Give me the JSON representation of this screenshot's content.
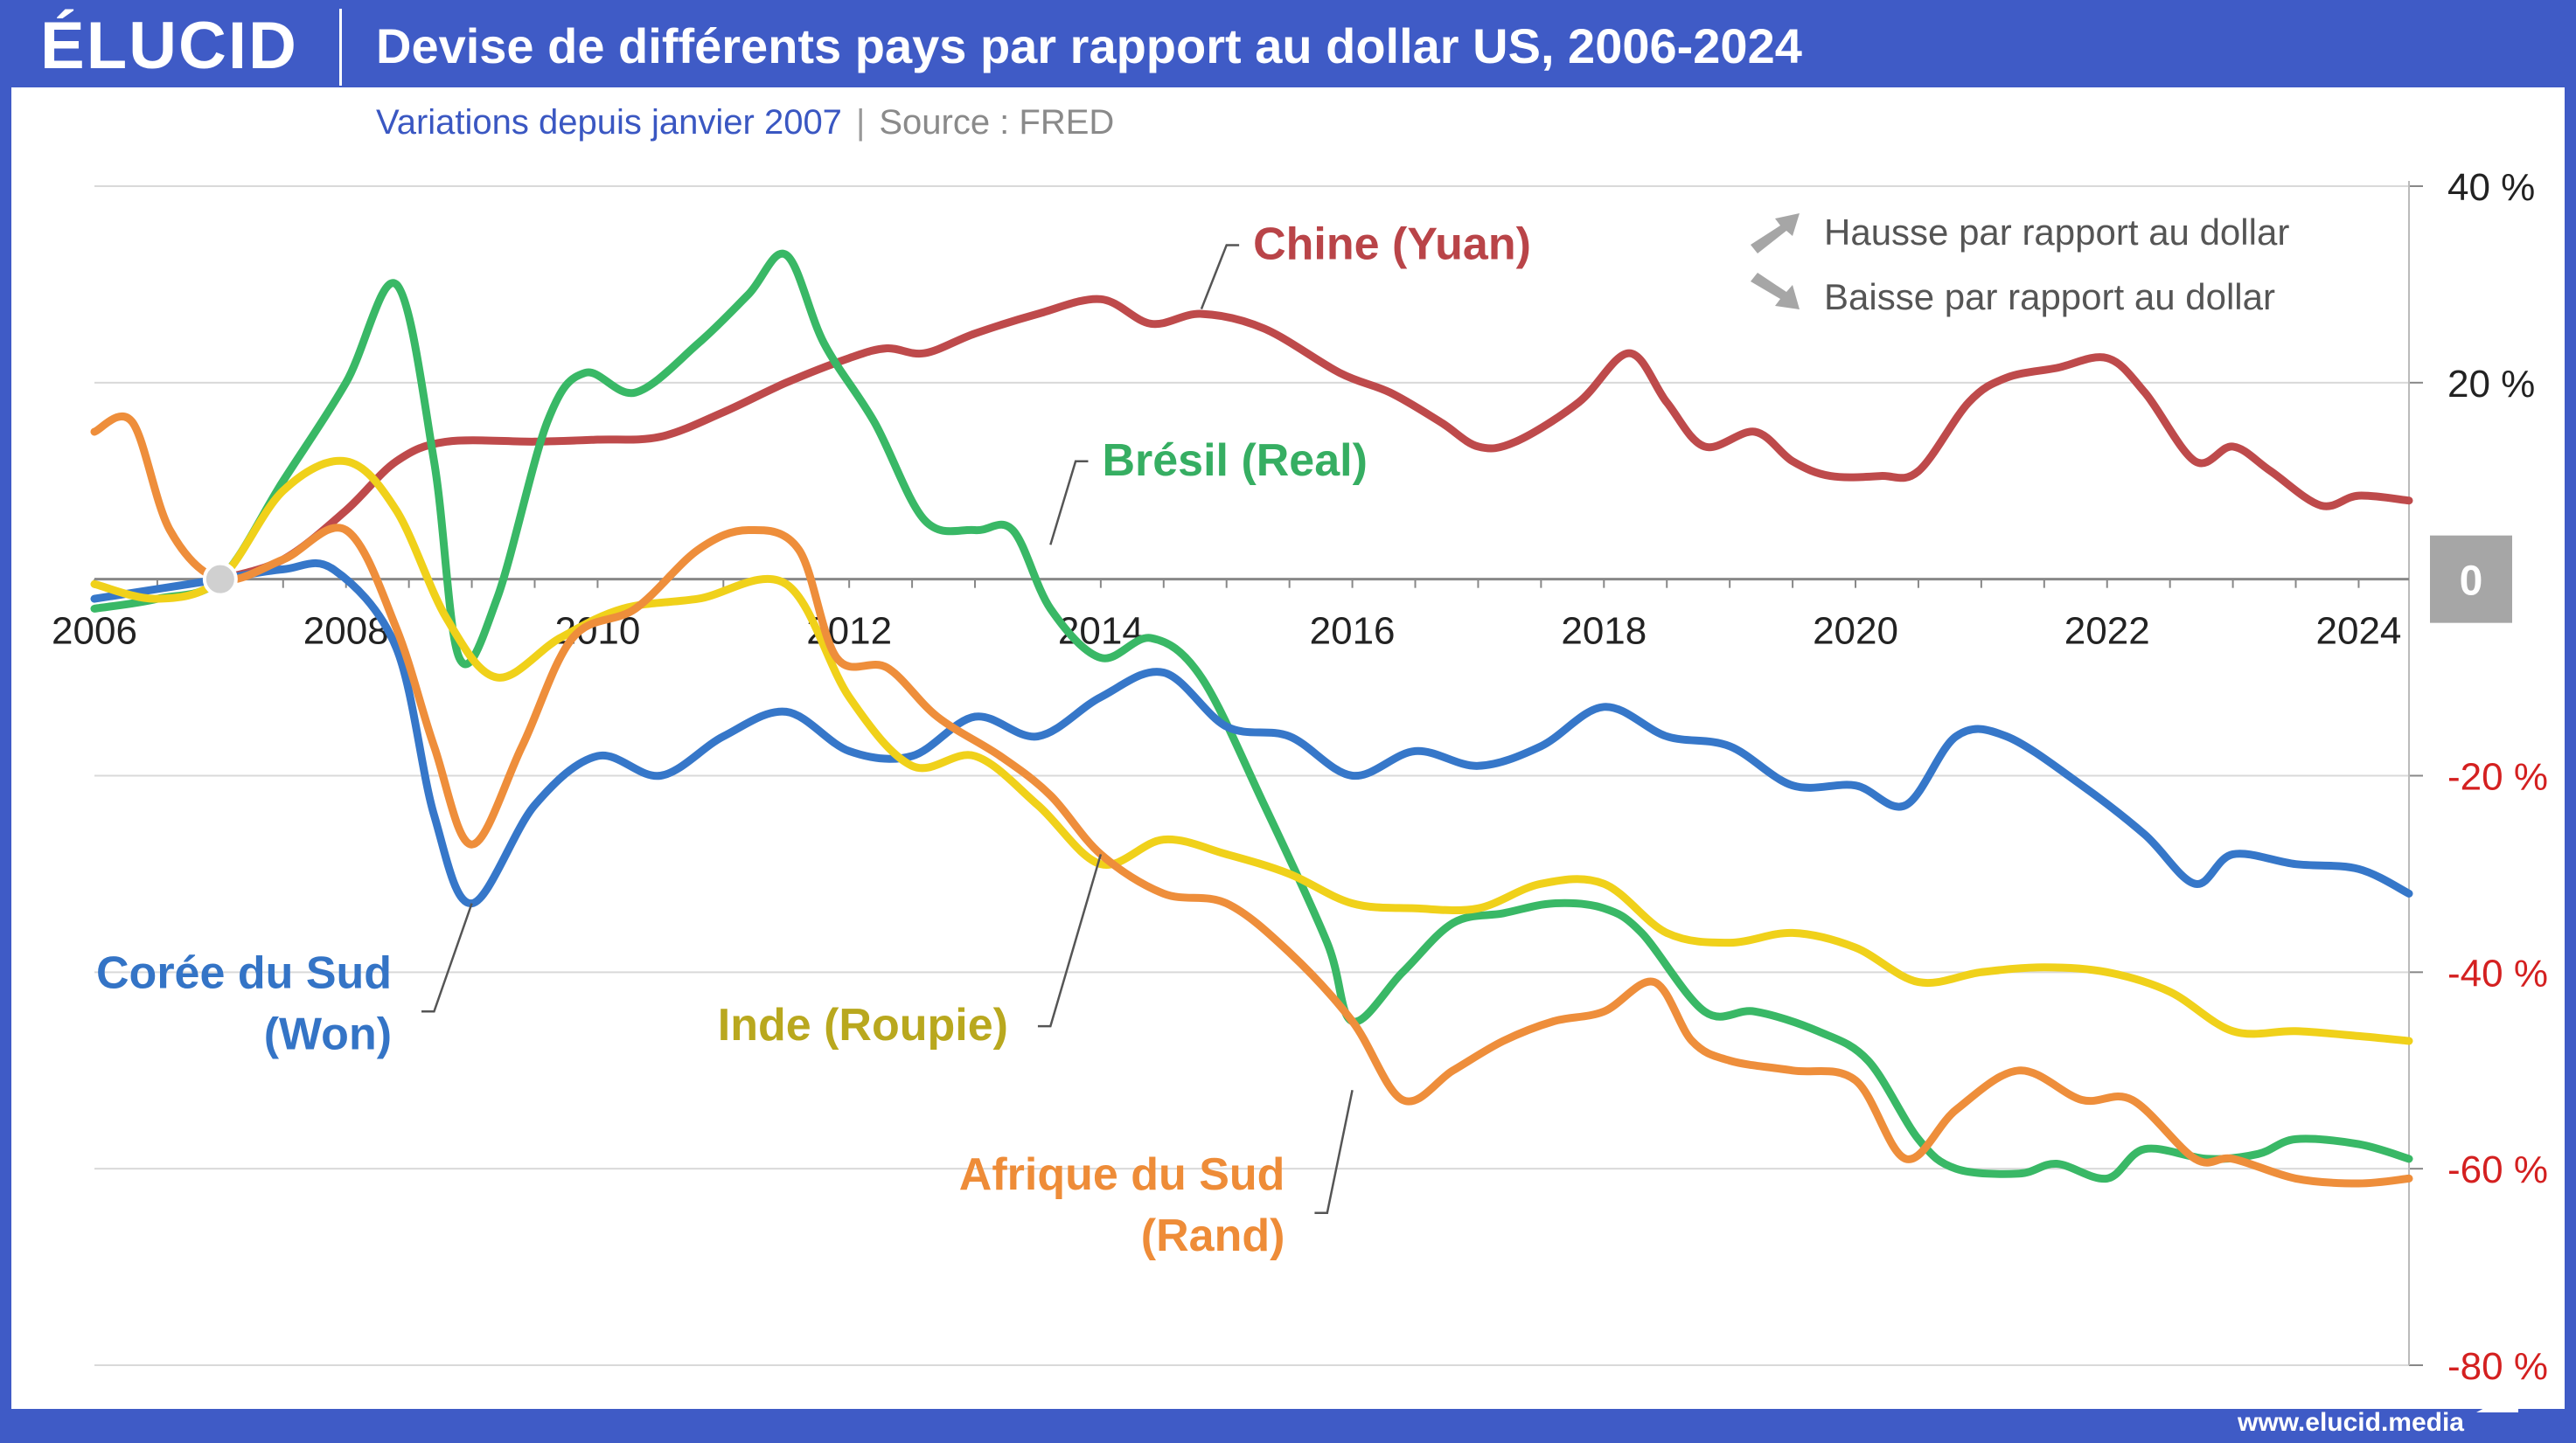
{
  "header": {
    "logo_text": "ÉLUCID",
    "title": "Devise de différents pays par rapport au dollar US, 2006-2024",
    "subtitle": "Variations depuis janvier 2007",
    "separator": "|",
    "source": "Source : FRED"
  },
  "footer": {
    "url": "www.elucid.media"
  },
  "legend": {
    "up": {
      "icon": "arrow-up-right-icon",
      "label": "Hausse par rapport au dollar"
    },
    "down": {
      "icon": "arrow-down-right-icon",
      "label": "Baisse par rapport au dollar"
    }
  },
  "colors": {
    "background": "#3f5bc6",
    "panel": "#ffffff",
    "grid": "#d9d9d9",
    "zero_box": "#a6a6a6",
    "negative_tick": "#d42020",
    "positive_tick": "#222222",
    "leader": "#555555",
    "legend_arrow": "#a6a6a6"
  },
  "chart_data": {
    "type": "line",
    "title": "Devise de différents pays par rapport au dollar US, 2006-2024",
    "subtitle": "Variations depuis janvier 2007",
    "xlabel": "",
    "ylabel": "",
    "xlim": [
      2006,
      2024.4
    ],
    "ylim": [
      -80,
      40
    ],
    "x_ticks": [
      2006,
      2008,
      2010,
      2012,
      2014,
      2016,
      2018,
      2020,
      2022,
      2024
    ],
    "y_ticks": [
      {
        "value": 40,
        "label": "40 %"
      },
      {
        "value": 20,
        "label": "20 %"
      },
      {
        "value": 0,
        "label": "0"
      },
      {
        "value": -20,
        "label": "-20 %"
      },
      {
        "value": -40,
        "label": "-40 %"
      },
      {
        "value": -60,
        "label": "-60 %"
      },
      {
        "value": -80,
        "label": "-80 %"
      }
    ],
    "grid": true,
    "base_point": {
      "x": 2007,
      "y": 0
    },
    "series": [
      {
        "name": "Chine (Yuan)",
        "label_lines": [
          "Chine (Yuan)"
        ],
        "color": "#be4a4b",
        "label_color": "#b94448",
        "points": [
          [
            2007.0,
            0
          ],
          [
            2007.5,
            2
          ],
          [
            2008.0,
            7
          ],
          [
            2008.4,
            12
          ],
          [
            2008.8,
            14
          ],
          [
            2009.5,
            14
          ],
          [
            2010.0,
            14.2
          ],
          [
            2010.5,
            14.5
          ],
          [
            2011.0,
            17
          ],
          [
            2011.5,
            20
          ],
          [
            2012.0,
            22.5
          ],
          [
            2012.3,
            23.5
          ],
          [
            2012.6,
            23
          ],
          [
            2013.0,
            25
          ],
          [
            2013.5,
            27
          ],
          [
            2014.0,
            28.5
          ],
          [
            2014.4,
            26
          ],
          [
            2014.8,
            27
          ],
          [
            2015.3,
            25.5
          ],
          [
            2015.9,
            21
          ],
          [
            2016.3,
            19
          ],
          [
            2016.7,
            16
          ],
          [
            2017.0,
            13.5
          ],
          [
            2017.3,
            14
          ],
          [
            2017.8,
            18
          ],
          [
            2018.2,
            23
          ],
          [
            2018.5,
            18
          ],
          [
            2018.8,
            13.5
          ],
          [
            2019.2,
            15
          ],
          [
            2019.5,
            12
          ],
          [
            2019.8,
            10.5
          ],
          [
            2020.2,
            10.5
          ],
          [
            2020.5,
            11
          ],
          [
            2020.9,
            18
          ],
          [
            2021.2,
            20.5
          ],
          [
            2021.6,
            21.5
          ],
          [
            2022.0,
            22.5
          ],
          [
            2022.3,
            19
          ],
          [
            2022.7,
            12
          ],
          [
            2023.0,
            13.5
          ],
          [
            2023.3,
            11
          ],
          [
            2023.7,
            7.5
          ],
          [
            2024.0,
            8.5
          ],
          [
            2024.4,
            8
          ]
        ],
        "label_leader": [
          [
            2014.8,
            27.5
          ],
          [
            2015.0,
            34
          ],
          [
            2015.1,
            34
          ]
        ]
      },
      {
        "name": "Brésil (Real)",
        "label_lines": [
          "Brésil (Real)"
        ],
        "color": "#39b866",
        "label_color": "#36ae62",
        "points": [
          [
            2006.0,
            -3
          ],
          [
            2006.5,
            -2
          ],
          [
            2007.0,
            0
          ],
          [
            2007.5,
            10
          ],
          [
            2008.0,
            20
          ],
          [
            2008.4,
            30
          ],
          [
            2008.7,
            12
          ],
          [
            2008.9,
            -8
          ],
          [
            2009.2,
            -2
          ],
          [
            2009.6,
            16
          ],
          [
            2009.9,
            21
          ],
          [
            2010.3,
            19
          ],
          [
            2010.8,
            24
          ],
          [
            2011.2,
            29
          ],
          [
            2011.5,
            33
          ],
          [
            2011.8,
            24
          ],
          [
            2012.2,
            16
          ],
          [
            2012.6,
            6
          ],
          [
            2013.0,
            5
          ],
          [
            2013.3,
            5
          ],
          [
            2013.6,
            -3
          ],
          [
            2014.0,
            -8
          ],
          [
            2014.4,
            -6
          ],
          [
            2014.8,
            -10
          ],
          [
            2015.3,
            -23
          ],
          [
            2015.8,
            -37
          ],
          [
            2016.0,
            -45
          ],
          [
            2016.4,
            -40
          ],
          [
            2016.8,
            -35
          ],
          [
            2017.2,
            -34
          ],
          [
            2017.6,
            -33
          ],
          [
            2018.0,
            -33.5
          ],
          [
            2018.3,
            -36
          ],
          [
            2018.8,
            -44
          ],
          [
            2019.2,
            -44
          ],
          [
            2019.7,
            -46
          ],
          [
            2020.1,
            -49
          ],
          [
            2020.5,
            -57
          ],
          [
            2020.8,
            -60
          ],
          [
            2021.3,
            -60.5
          ],
          [
            2021.6,
            -59.5
          ],
          [
            2022.0,
            -61
          ],
          [
            2022.3,
            -58
          ],
          [
            2022.8,
            -59
          ],
          [
            2023.2,
            -58.5
          ],
          [
            2023.5,
            -57
          ],
          [
            2024.0,
            -57.5
          ],
          [
            2024.4,
            -59
          ]
        ],
        "label_leader": [
          [
            2013.6,
            3.5
          ],
          [
            2013.8,
            12
          ],
          [
            2013.9,
            12
          ]
        ]
      },
      {
        "name": "Corée du Sud (Won)",
        "label_lines": [
          "Corée du Sud",
          "(Won)"
        ],
        "color": "#3677c9",
        "label_color": "#3474c6",
        "points": [
          [
            2006.0,
            -2
          ],
          [
            2006.5,
            -1
          ],
          [
            2007.0,
            0
          ],
          [
            2007.5,
            1
          ],
          [
            2007.9,
            1
          ],
          [
            2008.4,
            -7
          ],
          [
            2008.7,
            -24
          ],
          [
            2009.0,
            -33
          ],
          [
            2009.5,
            -23
          ],
          [
            2010.0,
            -18
          ],
          [
            2010.5,
            -20
          ],
          [
            2011.0,
            -16
          ],
          [
            2011.5,
            -13.5
          ],
          [
            2012.0,
            -17.5
          ],
          [
            2012.5,
            -18
          ],
          [
            2013.0,
            -14
          ],
          [
            2013.5,
            -16
          ],
          [
            2014.0,
            -12
          ],
          [
            2014.5,
            -9.5
          ],
          [
            2015.0,
            -15
          ],
          [
            2015.5,
            -16
          ],
          [
            2016.0,
            -20
          ],
          [
            2016.5,
            -17.5
          ],
          [
            2017.0,
            -19
          ],
          [
            2017.5,
            -17
          ],
          [
            2018.0,
            -13
          ],
          [
            2018.5,
            -16
          ],
          [
            2019.0,
            -17
          ],
          [
            2019.5,
            -21
          ],
          [
            2020.0,
            -21
          ],
          [
            2020.4,
            -23
          ],
          [
            2020.8,
            -16
          ],
          [
            2021.2,
            -16
          ],
          [
            2021.8,
            -21
          ],
          [
            2022.3,
            -26
          ],
          [
            2022.7,
            -31
          ],
          [
            2023.0,
            -28
          ],
          [
            2023.5,
            -29
          ],
          [
            2024.0,
            -29.5
          ],
          [
            2024.4,
            -32
          ]
        ],
        "label_leader": [
          [
            2009.0,
            -33
          ],
          [
            2008.7,
            -44
          ],
          [
            2008.6,
            -44
          ]
        ]
      },
      {
        "name": "Inde (Roupie)",
        "label_lines": [
          "Inde (Roupie)"
        ],
        "color": "#f0d11a",
        "label_color": "#b9a81e",
        "points": [
          [
            2006.0,
            -0.5
          ],
          [
            2006.5,
            -2
          ],
          [
            2007.0,
            0
          ],
          [
            2007.5,
            9
          ],
          [
            2008.0,
            12
          ],
          [
            2008.4,
            7
          ],
          [
            2008.8,
            -4
          ],
          [
            2009.2,
            -10
          ],
          [
            2009.7,
            -6
          ],
          [
            2010.2,
            -3
          ],
          [
            2010.8,
            -2
          ],
          [
            2011.5,
            -0.5
          ],
          [
            2012.0,
            -12
          ],
          [
            2012.5,
            -19
          ],
          [
            2013.0,
            -18
          ],
          [
            2013.5,
            -23
          ],
          [
            2014.0,
            -29
          ],
          [
            2014.5,
            -26.5
          ],
          [
            2015.0,
            -28
          ],
          [
            2015.5,
            -30
          ],
          [
            2016.0,
            -33
          ],
          [
            2016.5,
            -33.5
          ],
          [
            2017.0,
            -33.5
          ],
          [
            2017.5,
            -31
          ],
          [
            2018.0,
            -31
          ],
          [
            2018.5,
            -36
          ],
          [
            2019.0,
            -37
          ],
          [
            2019.5,
            -36
          ],
          [
            2020.0,
            -37.5
          ],
          [
            2020.5,
            -41
          ],
          [
            2021.0,
            -40
          ],
          [
            2021.5,
            -39.5
          ],
          [
            2022.0,
            -40
          ],
          [
            2022.5,
            -42
          ],
          [
            2023.0,
            -46
          ],
          [
            2023.5,
            -46
          ],
          [
            2024.0,
            -46.5
          ],
          [
            2024.4,
            -47
          ]
        ],
        "label_leader": [
          [
            2014.0,
            -28
          ],
          [
            2013.6,
            -45.5
          ],
          [
            2013.5,
            -45.5
          ]
        ]
      },
      {
        "name": "Afrique du Sud (Rand)",
        "label_lines": [
          "Afrique du Sud",
          "(Rand)"
        ],
        "color": "#ee8e3b",
        "label_color": "#ee8c38",
        "points": [
          [
            2006.0,
            15
          ],
          [
            2006.3,
            16
          ],
          [
            2006.6,
            5
          ],
          [
            2007.0,
            0
          ],
          [
            2007.5,
            2
          ],
          [
            2008.0,
            5
          ],
          [
            2008.4,
            -5
          ],
          [
            2008.7,
            -17
          ],
          [
            2009.0,
            -27
          ],
          [
            2009.4,
            -17
          ],
          [
            2009.8,
            -6
          ],
          [
            2010.3,
            -3
          ],
          [
            2010.8,
            3
          ],
          [
            2011.2,
            5
          ],
          [
            2011.6,
            3
          ],
          [
            2011.9,
            -8
          ],
          [
            2012.3,
            -9
          ],
          [
            2012.7,
            -14
          ],
          [
            2013.2,
            -18
          ],
          [
            2013.6,
            -22
          ],
          [
            2014.0,
            -28
          ],
          [
            2014.5,
            -32
          ],
          [
            2015.0,
            -33
          ],
          [
            2015.5,
            -38
          ],
          [
            2016.0,
            -45
          ],
          [
            2016.4,
            -53
          ],
          [
            2016.8,
            -50
          ],
          [
            2017.2,
            -47
          ],
          [
            2017.6,
            -45
          ],
          [
            2018.0,
            -44
          ],
          [
            2018.4,
            -41
          ],
          [
            2018.7,
            -47
          ],
          [
            2019.0,
            -49
          ],
          [
            2019.5,
            -50
          ],
          [
            2020.0,
            -51
          ],
          [
            2020.4,
            -59
          ],
          [
            2020.8,
            -54
          ],
          [
            2021.3,
            -50
          ],
          [
            2021.8,
            -53
          ],
          [
            2022.2,
            -53
          ],
          [
            2022.7,
            -59
          ],
          [
            2023.0,
            -59
          ],
          [
            2023.5,
            -61
          ],
          [
            2024.0,
            -61.5
          ],
          [
            2024.4,
            -61
          ]
        ],
        "label_leader": [
          [
            2016.0,
            -52
          ],
          [
            2015.8,
            -64.5
          ],
          [
            2015.7,
            -64.5
          ]
        ]
      }
    ]
  }
}
